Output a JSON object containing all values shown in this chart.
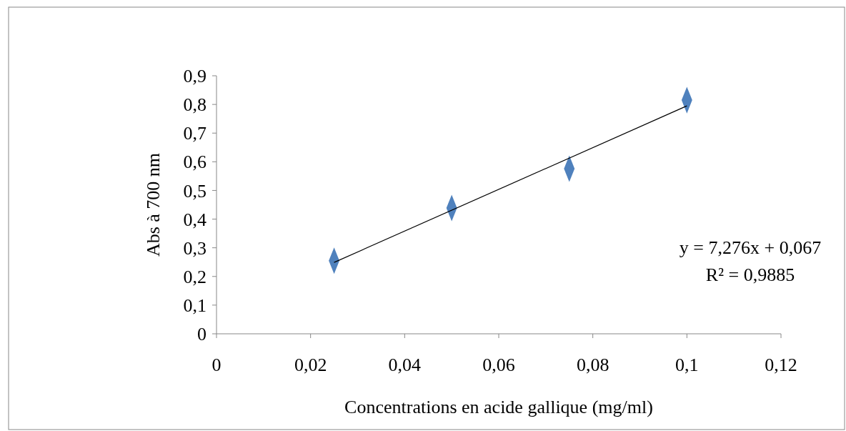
{
  "chart_data": {
    "type": "scatter",
    "xlabel": "Concentrations en acide gallique  (mg/ml)",
    "ylabel": "Abs à 700 nm",
    "xlim": [
      0,
      0.12
    ],
    "ylim": [
      0,
      0.9
    ],
    "xticks": [
      0,
      {
        "value": 0.02,
        "label": "0,02"
      },
      {
        "value": 0.04,
        "label": "0,04"
      },
      {
        "value": 0.06,
        "label": "0,06"
      },
      {
        "value": 0.08,
        "label": "0,08"
      },
      {
        "value": 0.1,
        "label": "0,1"
      },
      {
        "value": 0.12,
        "label": "0,12"
      }
    ],
    "yticks": [
      0,
      {
        "value": 0.1,
        "label": "0,1"
      },
      {
        "value": 0.2,
        "label": "0,2"
      },
      {
        "value": 0.3,
        "label": "0,3"
      },
      {
        "value": 0.4,
        "label": "0,4"
      },
      {
        "value": 0.5,
        "label": "0,5"
      },
      {
        "value": 0.6,
        "label": "0,6"
      },
      {
        "value": 0.7,
        "label": "0,7"
      },
      {
        "value": 0.8,
        "label": "0,8"
      },
      {
        "value": 0.9,
        "label": "0,9"
      }
    ],
    "grid": false,
    "series": [
      {
        "color": "#4f81bd",
        "marker": "diamond",
        "x": [
          0.025,
          0.05,
          0.075,
          0.1
        ],
        "values": [
          0.255,
          0.439,
          0.576,
          0.815
        ]
      },
      {
        "type": "line",
        "color": "#000000",
        "x": [
          0.025,
          0.1
        ],
        "values": [
          0.249,
          0.795
        ]
      }
    ],
    "annotations": [
      "y = 7,276x + 0,067",
      "R² = 0,9885"
    ]
  }
}
